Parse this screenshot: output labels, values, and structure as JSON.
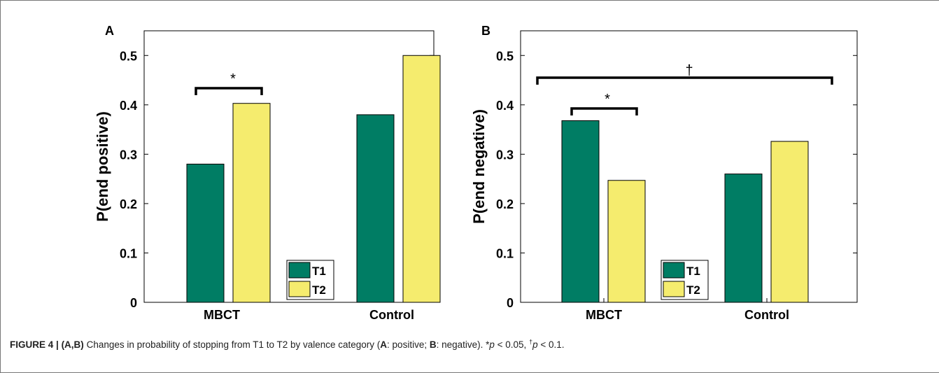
{
  "chart_data": [
    {
      "type": "bar",
      "panel_label": "A",
      "categories": [
        "MBCT",
        "Control"
      ],
      "series": [
        {
          "name": "T1",
          "values": [
            0.28,
            0.38
          ]
        },
        {
          "name": "T2",
          "values": [
            0.403,
            0.5
          ]
        }
      ],
      "ylabel": "P(end positive)",
      "ylim": [
        0,
        0.55
      ],
      "yticks": [
        "0",
        "0.1",
        "0.2",
        "0.3",
        "0.4",
        "0.5"
      ],
      "legend_placement": "bottom-center",
      "annotations": [
        {
          "text": "*",
          "spans": "MBCT T1 vs MBCT T2"
        }
      ],
      "colors": {
        "T1": "#007d64",
        "T2": "#f5ec6e"
      }
    },
    {
      "type": "bar",
      "panel_label": "B",
      "categories": [
        "MBCT",
        "Control"
      ],
      "series": [
        {
          "name": "T1",
          "values": [
            0.368,
            0.26
          ]
        },
        {
          "name": "T2",
          "values": [
            0.247,
            0.326
          ]
        }
      ],
      "ylabel": "P(end negative)",
      "ylim": [
        0,
        0.55
      ],
      "yticks": [
        "0",
        "0.1",
        "0.2",
        "0.3",
        "0.4",
        "0.5"
      ],
      "legend_placement": "bottom-center",
      "annotations": [
        {
          "text": "*",
          "spans": "MBCT T1 vs MBCT T2"
        },
        {
          "text": "†",
          "spans": "MBCT vs Control"
        }
      ],
      "colors": {
        "T1": "#007d64",
        "T2": "#f5ec6e"
      }
    }
  ],
  "caption": {
    "label": "FIGURE 4 |",
    "panels": "(A,B)",
    "text_1": " Changes in probability of stopping from T1 to T2 by valence category (",
    "a_letter": "A",
    "a_text": ": positive; ",
    "b_letter": "B",
    "b_text": ": negative). *",
    "p1": "p",
    "p1_rest": " < 0.05, ",
    "dagger": "†",
    "p2": "p",
    "p2_rest": " < 0.1."
  }
}
